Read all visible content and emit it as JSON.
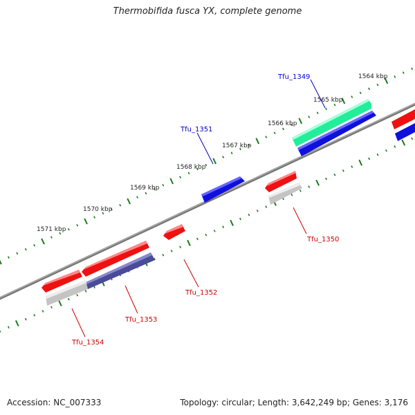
{
  "title": "Thermobifida fusca YX, complete genome",
  "accession_label": "Accession: NC_007333",
  "summary_label": "Topology: circular; Length: 3,642,249 bp; Genes: 3,176",
  "colors": {
    "backbone": "#808080",
    "ticks": "#1a7a1a",
    "forward_label": "#0000cc",
    "reverse_label": "#cc0000",
    "red_gene": "#ee1111",
    "blue_gene": "#1010dd",
    "green_gene": "#22ee99",
    "navy_gene": "#4a4a99",
    "grey_gene": "#c4c4c4"
  },
  "kbp_labels": [
    "1564 kbp",
    "1565 kbp",
    "1566 kbp",
    "1567 kbp",
    "1568 kbp",
    "1569 kbp",
    "1570 kbp",
    "1571 kbp"
  ],
  "gene_labels": {
    "forward": [
      "Tfu_1349",
      "Tfu_1351"
    ],
    "reverse": [
      "Tfu_1350",
      "Tfu_1352",
      "Tfu_1353",
      "Tfu_1354"
    ]
  }
}
